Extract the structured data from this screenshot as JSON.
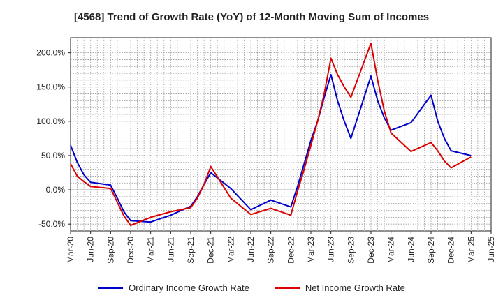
{
  "title": "[4568]  Trend of Growth Rate (YoY) of 12-Month Moving Sum of Incomes",
  "chart_data": {
    "type": "line",
    "title": "[4568]  Trend of Growth Rate (YoY) of 12-Month Moving Sum of Incomes",
    "xlabel": "",
    "ylabel": "",
    "ylim": [
      -60,
      222
    ],
    "yticks": [
      -50,
      0,
      50,
      100,
      150,
      200
    ],
    "ytick_labels": [
      "-50.0%",
      "0.0%",
      "50.0%",
      "100.0%",
      "150.0%",
      "200.0%"
    ],
    "xtick_labels": [
      "Mar-20",
      "Jun-20",
      "Sep-20",
      "Dec-20",
      "Mar-21",
      "Jun-21",
      "Sep-21",
      "Dec-21",
      "Mar-22",
      "Jun-22",
      "Sep-22",
      "Dec-22",
      "Mar-23",
      "Jun-23",
      "Sep-23",
      "Dec-23",
      "Mar-24",
      "Jun-24",
      "Sep-24",
      "Dec-24",
      "Mar-25",
      "Jun-25"
    ],
    "grid": true,
    "legend_position": "bottom",
    "series": [
      {
        "name": "Ordinary Income Growth Rate",
        "color": "#0000cc",
        "x": [
          "Mar-20",
          "Apr-20",
          "May-20",
          "Jun-20",
          "Sep-20",
          "Oct-20",
          "Nov-20",
          "Dec-20",
          "Mar-21",
          "Jun-21",
          "Sep-21",
          "Oct-21",
          "Nov-21",
          "Dec-21",
          "Mar-22",
          "Jun-22",
          "Sep-22",
          "Dec-22",
          "Jan-23",
          "Feb-23",
          "Mar-23",
          "Apr-23",
          "May-23",
          "Jun-23",
          "Jul-23",
          "Aug-23",
          "Sep-23",
          "Dec-23",
          "Jan-24",
          "Feb-24",
          "Mar-24",
          "Jun-24",
          "Sep-24",
          "Oct-24",
          "Nov-24",
          "Dec-24",
          "Mar-25"
        ],
        "values": [
          65,
          40,
          22,
          11,
          7,
          -12,
          -32,
          -45,
          -47,
          -37,
          -24,
          -10,
          8,
          25,
          2,
          -29,
          -15,
          -25,
          5,
          38,
          72,
          100,
          135,
          168,
          130,
          100,
          75,
          166,
          130,
          105,
          87,
          98,
          138,
          100,
          75,
          57,
          50
        ]
      },
      {
        "name": "Net Income Growth Rate",
        "color": "#dd0000",
        "x": [
          "Mar-20",
          "Apr-20",
          "May-20",
          "Jun-20",
          "Sep-20",
          "Oct-20",
          "Nov-20",
          "Dec-20",
          "Mar-21",
          "Jun-21",
          "Sep-21",
          "Oct-21",
          "Nov-21",
          "Dec-21",
          "Mar-22",
          "Jun-22",
          "Sep-22",
          "Dec-22",
          "Jan-23",
          "Feb-23",
          "Mar-23",
          "Apr-23",
          "May-23",
          "Jun-23",
          "Jul-23",
          "Aug-23",
          "Sep-23",
          "Dec-23",
          "Jan-24",
          "Feb-24",
          "Mar-24",
          "Jun-24",
          "Sep-24",
          "Oct-24",
          "Nov-24",
          "Dec-24",
          "Mar-25"
        ],
        "values": [
          38,
          20,
          12,
          5,
          2,
          -18,
          -38,
          -52,
          -40,
          -32,
          -26,
          -12,
          8,
          34,
          -12,
          -36,
          -27,
          -37,
          -2,
          30,
          65,
          100,
          140,
          192,
          168,
          150,
          135,
          214,
          160,
          115,
          83,
          56,
          69,
          57,
          42,
          32,
          48
        ]
      }
    ]
  }
}
